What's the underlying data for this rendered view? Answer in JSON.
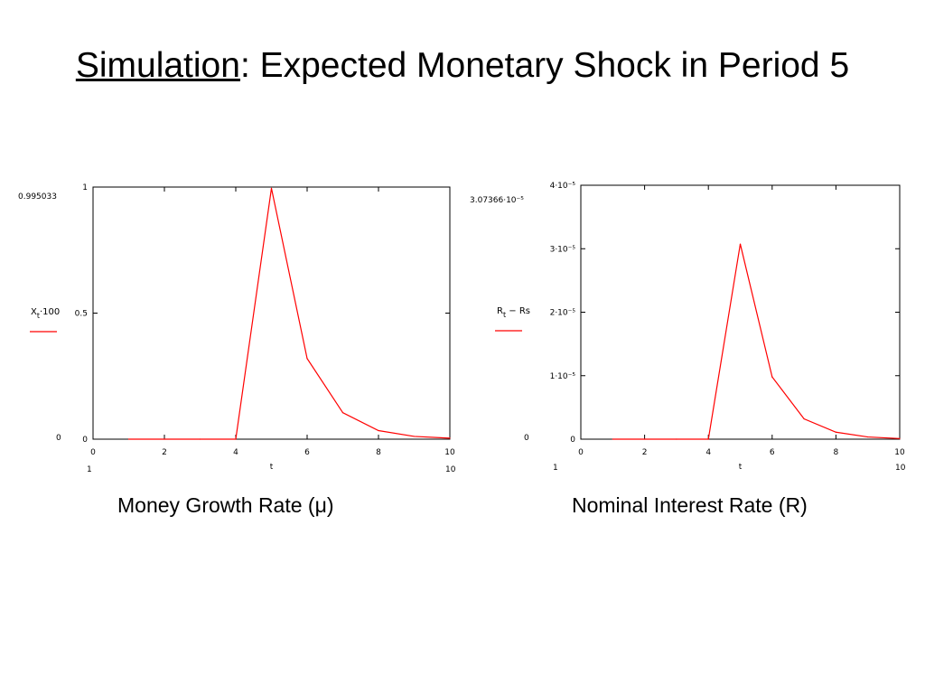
{
  "slide": {
    "title_underlined": "Simulation",
    "title_rest": ": Expected Monetary Shock in Period 5"
  },
  "captions": {
    "left": "Money Growth Rate (μ)",
    "right": "Nominal Interest Rate (R)"
  },
  "colors": {
    "series": "#ff0000",
    "frame": "#000000"
  },
  "chart_data": [
    {
      "type": "line",
      "ylabel": "X_t·100",
      "xlabel": "t",
      "xlim": [
        0,
        10
      ],
      "ylim": [
        0,
        1
      ],
      "x_ticks": [
        "0",
        "2",
        "4",
        "6",
        "8",
        "10"
      ],
      "y_ticks": [
        "0",
        "0.5",
        "1"
      ],
      "y_max_readout": "0.995033",
      "y_min_readout": "0",
      "x_min_readout": "1",
      "x_max_readout": "10",
      "series": [
        {
          "x": [
            1,
            2,
            3,
            4,
            5,
            6,
            7,
            8,
            9,
            10
          ],
          "y": [
            0,
            0,
            0,
            0,
            0.995033,
            0.32,
            0.105,
            0.034,
            0.011,
            0.004
          ]
        }
      ]
    },
    {
      "type": "line",
      "ylabel": "R_t − Rs",
      "xlabel": "t",
      "xlim": [
        0,
        10
      ],
      "ylim": [
        0,
        4e-05
      ],
      "x_ticks": [
        "0",
        "2",
        "4",
        "6",
        "8",
        "10"
      ],
      "y_ticks": [
        "0",
        "1·10⁻⁵",
        "2·10⁻⁵",
        "3·10⁻⁵",
        "4·10⁻⁵"
      ],
      "y_max_readout": "3.07366·10⁻⁵",
      "y_min_readout": "0",
      "x_min_readout": "1",
      "x_max_readout": "10",
      "series": [
        {
          "x": [
            1,
            2,
            3,
            4,
            5,
            6,
            7,
            8,
            9,
            10
          ],
          "y": [
            0,
            0,
            0,
            0,
            3.07366e-05,
            9.8e-06,
            3.2e-06,
            1.1e-06,
            3.5e-07,
            1e-07
          ]
        }
      ]
    }
  ]
}
